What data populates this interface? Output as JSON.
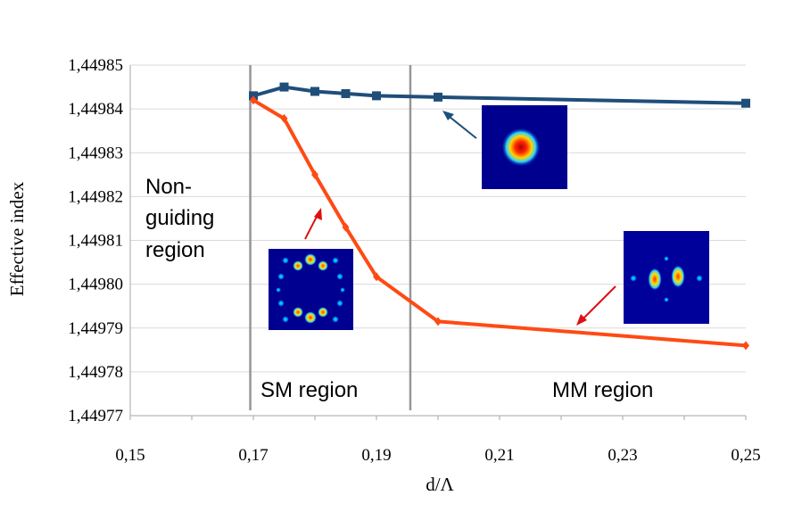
{
  "chart_data": {
    "type": "line",
    "xlabel": "d/Λ",
    "ylabel": "Effective index",
    "xlim": [
      0.15,
      0.25
    ],
    "ylim": [
      1.44977,
      1.44985
    ],
    "x_ticks": [
      "0,15",
      "0,17",
      "0,19",
      "0,21",
      "0,23",
      "0,25"
    ],
    "y_ticks": [
      "1,44977",
      "1,44978",
      "1,44979",
      "1,44980",
      "1,44981",
      "1,44982",
      "1,44983",
      "1,44984",
      "1,44985"
    ],
    "grid": "horizontal",
    "series": [
      {
        "marker": "square",
        "color": "#1f4e79",
        "points": [
          [
            0.17,
            1.449843
          ],
          [
            0.175,
            1.449845
          ],
          [
            0.18,
            1.449844
          ],
          [
            0.185,
            1.4498435
          ],
          [
            0.19,
            1.449843
          ],
          [
            0.2,
            1.4498427
          ],
          [
            0.25,
            1.4498413
          ]
        ]
      },
      {
        "marker": "diamond",
        "color": "#ff4a14",
        "points": [
          [
            0.17,
            1.449842
          ],
          [
            0.175,
            1.4498378
          ],
          [
            0.18,
            1.449825
          ],
          [
            0.185,
            1.449813
          ],
          [
            0.19,
            1.4498017
          ],
          [
            0.2,
            1.4497915
          ],
          [
            0.25,
            1.449786
          ]
        ]
      }
    ],
    "region_dividers": [
      0.1695,
      0.1955
    ],
    "annotations": {
      "non_guiding": [
        "Non-",
        "guiding",
        "region"
      ],
      "sm": "SM region",
      "mm": "MM region"
    }
  }
}
